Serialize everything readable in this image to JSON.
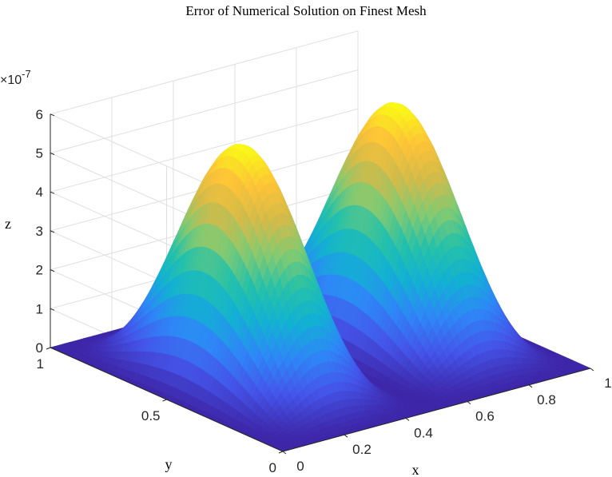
{
  "chart_data": {
    "type": "surface",
    "title": "Error of Numerical Solution on Finest Mesh",
    "xlabel": "x",
    "ylabel": "y",
    "zlabel": "z",
    "z_exponent_label": "×10",
    "z_exponent_value": "-7",
    "xlim": [
      0,
      1
    ],
    "ylim": [
      0,
      1
    ],
    "zlim": [
      0,
      6
    ],
    "x_ticks": [
      "0",
      "0.2",
      "0.4",
      "0.6",
      "0.8",
      "1"
    ],
    "x_tick_values": [
      0,
      0.2,
      0.4,
      0.6,
      0.8,
      1
    ],
    "y_ticks": [
      "0",
      "0.5",
      "1"
    ],
    "y_tick_values": [
      0,
      0.5,
      1
    ],
    "z_ticks": [
      "0",
      "1",
      "2",
      "3",
      "4",
      "5",
      "6"
    ],
    "z_tick_values": [
      0,
      1,
      2,
      3,
      4,
      5,
      6
    ],
    "z_scale": "1e-7",
    "grid": true,
    "colormap": "parula",
    "colormap_stops": [
      "#3e26a8",
      "#4455ea",
      "#2e87f7",
      "#12b1d3",
      "#25c1a9",
      "#82ca72",
      "#d1bb4a",
      "#fdc338",
      "#f9fb15"
    ],
    "surface_formula": "z = 6e-7 * sin(pi*y)^2 * sin(2*pi*x)^2",
    "peaks": [
      {
        "x": 0.25,
        "y": 0.5,
        "z": 6
      },
      {
        "x": 0.75,
        "y": 0.5,
        "z": 6
      }
    ]
  }
}
